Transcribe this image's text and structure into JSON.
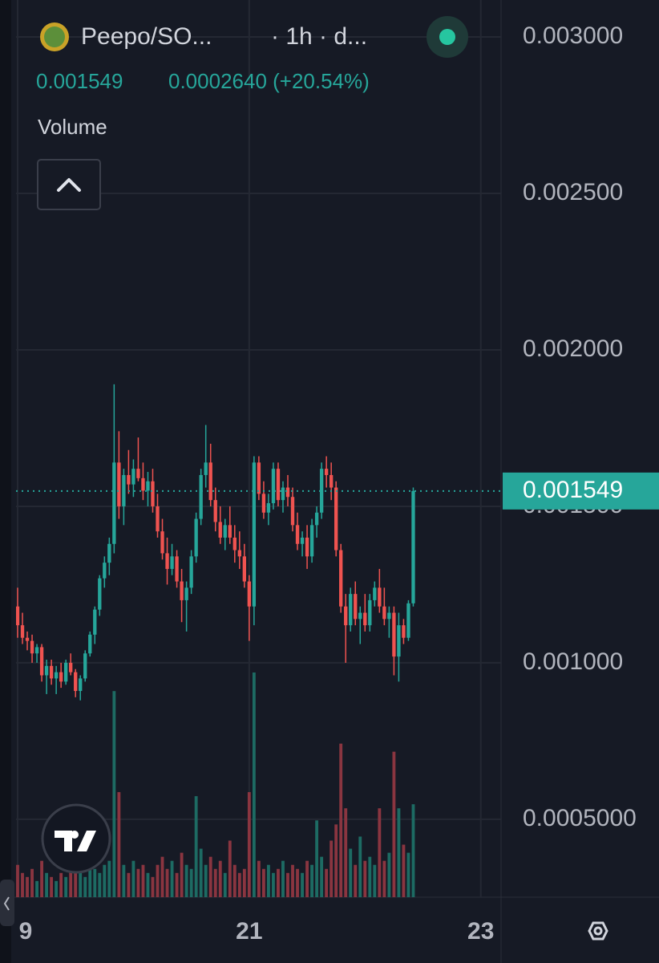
{
  "header": {
    "symbol": "Peepo/SO...",
    "interval": "· 1h · d...",
    "change": "0.0002640 (+20.54%)",
    "volume_label": "Volume"
  },
  "chart_data": {
    "type": "candlestick",
    "up_color": "#26a69a",
    "down_color": "#ef5350",
    "volume_up_color": "#1d6b63",
    "volume_down_color": "#8a3540",
    "grid": true,
    "last_price": 0.001549,
    "xlim": [
      -0.33,
      100.2
    ],
    "xticks": [
      {
        "value": 0,
        "label": "9"
      },
      {
        "value": 48,
        "label": "21"
      },
      {
        "value": 96,
        "label": "23"
      }
    ],
    "ylim": [
      0.000251,
      0.003118
    ],
    "yticks": [
      {
        "value": 0.0005,
        "label": "0.0005000"
      },
      {
        "value": 0.001,
        "label": "0.001000"
      },
      {
        "value": 0.0015,
        "label": "0.001500"
      },
      {
        "value": 0.002,
        "label": "0.002000"
      },
      {
        "value": 0.0025,
        "label": "0.002500"
      },
      {
        "value": 0.003,
        "label": "0.003000"
      }
    ],
    "x": [
      0,
      1,
      2,
      3,
      4,
      5,
      6,
      7,
      8,
      9,
      10,
      11,
      12,
      13,
      14,
      15,
      16,
      17,
      18,
      19,
      20,
      21,
      22,
      23,
      24,
      25,
      26,
      27,
      28,
      29,
      30,
      31,
      32,
      33,
      34,
      35,
      36,
      37,
      38,
      39,
      40,
      41,
      42,
      43,
      44,
      45,
      46,
      47,
      48,
      49,
      50,
      51,
      52,
      53,
      54,
      55,
      56,
      57,
      58,
      59,
      60,
      61,
      62,
      63,
      64,
      65,
      66,
      67,
      68,
      69,
      70,
      71,
      72,
      73,
      74,
      75,
      76,
      77,
      78,
      79,
      80,
      81,
      82
    ],
    "open": [
      0.00118,
      0.00112,
      0.00108,
      0.00107,
      0.00103,
      0.00105,
      0.00096,
      0.00099,
      0.00095,
      0.00097,
      0.00094,
      0.001,
      0.00097,
      0.00091,
      0.00095,
      0.00103,
      0.00109,
      0.00117,
      0.00127,
      0.00132,
      0.00138,
      0.00164,
      0.0015,
      0.0016,
      0.00157,
      0.00162,
      0.00159,
      0.00155,
      0.00158,
      0.0015,
      0.00142,
      0.00135,
      0.0013,
      0.00134,
      0.00126,
      0.0012,
      0.00124,
      0.00134,
      0.00146,
      0.0016,
      0.00164,
      0.00152,
      0.00145,
      0.0014,
      0.00144,
      0.0014,
      0.00136,
      0.00134,
      0.00126,
      0.00118,
      0.00164,
      0.00154,
      0.00148,
      0.00151,
      0.00162,
      0.00152,
      0.00156,
      0.00153,
      0.00144,
      0.00138,
      0.0014,
      0.00134,
      0.00144,
      0.00148,
      0.00162,
      0.0016,
      0.00156,
      0.00136,
      0.00118,
      0.00112,
      0.00122,
      0.00114,
      0.00116,
      0.00112,
      0.0012,
      0.00124,
      0.00118,
      0.00114,
      0.00116,
      0.00102,
      0.00112,
      0.00108,
      0.00119
    ],
    "high": [
      0.00124,
      0.00116,
      0.0011,
      0.00109,
      0.00106,
      0.00106,
      0.00101,
      0.00101,
      0.00099,
      0.001,
      0.00101,
      0.00103,
      0.00098,
      0.00096,
      0.00104,
      0.0011,
      0.00118,
      0.00128,
      0.00134,
      0.0014,
      0.00189,
      0.00174,
      0.00162,
      0.00168,
      0.00165,
      0.00172,
      0.00164,
      0.00161,
      0.00162,
      0.00154,
      0.00146,
      0.0014,
      0.00138,
      0.00136,
      0.0013,
      0.00126,
      0.00136,
      0.00148,
      0.00162,
      0.00176,
      0.0017,
      0.00156,
      0.0015,
      0.00146,
      0.0015,
      0.00144,
      0.00142,
      0.00138,
      0.00128,
      0.00166,
      0.00166,
      0.00158,
      0.00154,
      0.00164,
      0.00164,
      0.00158,
      0.0016,
      0.00156,
      0.00148,
      0.00142,
      0.00144,
      0.00146,
      0.0015,
      0.00164,
      0.00166,
      0.00164,
      0.00158,
      0.00138,
      0.00122,
      0.00124,
      0.00126,
      0.00118,
      0.00122,
      0.00122,
      0.00126,
      0.0013,
      0.00124,
      0.00118,
      0.00118,
      0.00116,
      0.00114,
      0.0012,
      0.00156
    ],
    "low": [
      0.00108,
      0.00106,
      0.00104,
      0.001,
      0.001,
      0.00094,
      0.0009,
      0.00093,
      0.0009,
      0.00092,
      0.00093,
      0.00096,
      0.00089,
      0.00088,
      0.00094,
      0.00102,
      0.00106,
      0.00115,
      0.00124,
      0.00128,
      0.00135,
      0.00146,
      0.00144,
      0.00154,
      0.00153,
      0.00158,
      0.00152,
      0.0015,
      0.00148,
      0.0014,
      0.00133,
      0.00125,
      0.00128,
      0.00124,
      0.00113,
      0.0011,
      0.00122,
      0.00132,
      0.00144,
      0.00156,
      0.0015,
      0.00142,
      0.00138,
      0.00136,
      0.00138,
      0.00132,
      0.0013,
      0.00124,
      0.00107,
      0.00112,
      0.00152,
      0.00146,
      0.00144,
      0.00149,
      0.0015,
      0.00148,
      0.0015,
      0.00142,
      0.00136,
      0.00134,
      0.0013,
      0.00132,
      0.0014,
      0.00146,
      0.00156,
      0.00152,
      0.00134,
      0.00116,
      0.001,
      0.0011,
      0.00112,
      0.00106,
      0.0011,
      0.0011,
      0.00118,
      0.00116,
      0.00112,
      0.00108,
      0.00096,
      0.00094,
      0.00106,
      0.00107,
      0.00118
    ],
    "close": [
      0.00112,
      0.00108,
      0.00107,
      0.00103,
      0.00105,
      0.00096,
      0.00099,
      0.00095,
      0.00097,
      0.00094,
      0.001,
      0.00097,
      0.00091,
      0.00095,
      0.00103,
      0.00109,
      0.00117,
      0.00127,
      0.00132,
      0.00138,
      0.00164,
      0.0015,
      0.0016,
      0.00157,
      0.00162,
      0.00159,
      0.00155,
      0.00158,
      0.0015,
      0.00142,
      0.00135,
      0.0013,
      0.00134,
      0.00126,
      0.0012,
      0.00124,
      0.00134,
      0.00146,
      0.0016,
      0.00164,
      0.00152,
      0.00145,
      0.0014,
      0.00144,
      0.0014,
      0.00136,
      0.00134,
      0.00126,
      0.00118,
      0.00164,
      0.00154,
      0.00148,
      0.00151,
      0.00162,
      0.00152,
      0.00156,
      0.00153,
      0.00144,
      0.00138,
      0.0014,
      0.00134,
      0.00144,
      0.00148,
      0.00162,
      0.0016,
      0.00156,
      0.00136,
      0.00118,
      0.00112,
      0.00122,
      0.00114,
      0.00116,
      0.00112,
      0.0012,
      0.00124,
      0.00118,
      0.00114,
      0.00116,
      0.00102,
      0.00112,
      0.00108,
      0.00119,
      0.001549
    ],
    "volume": [
      40,
      30,
      25,
      35,
      20,
      45,
      30,
      25,
      20,
      30,
      25,
      35,
      40,
      30,
      25,
      60,
      35,
      30,
      40,
      45,
      255,
      130,
      40,
      30,
      45,
      35,
      40,
      30,
      25,
      40,
      50,
      35,
      45,
      30,
      55,
      40,
      35,
      125,
      60,
      40,
      50,
      35,
      45,
      30,
      70,
      40,
      30,
      35,
      130,
      278,
      45,
      35,
      40,
      30,
      35,
      45,
      30,
      40,
      35,
      30,
      45,
      40,
      95,
      50,
      35,
      70,
      90,
      190,
      110,
      60,
      40,
      75,
      45,
      50,
      40,
      110,
      45,
      55,
      180,
      110,
      65,
      55,
      115
    ]
  }
}
